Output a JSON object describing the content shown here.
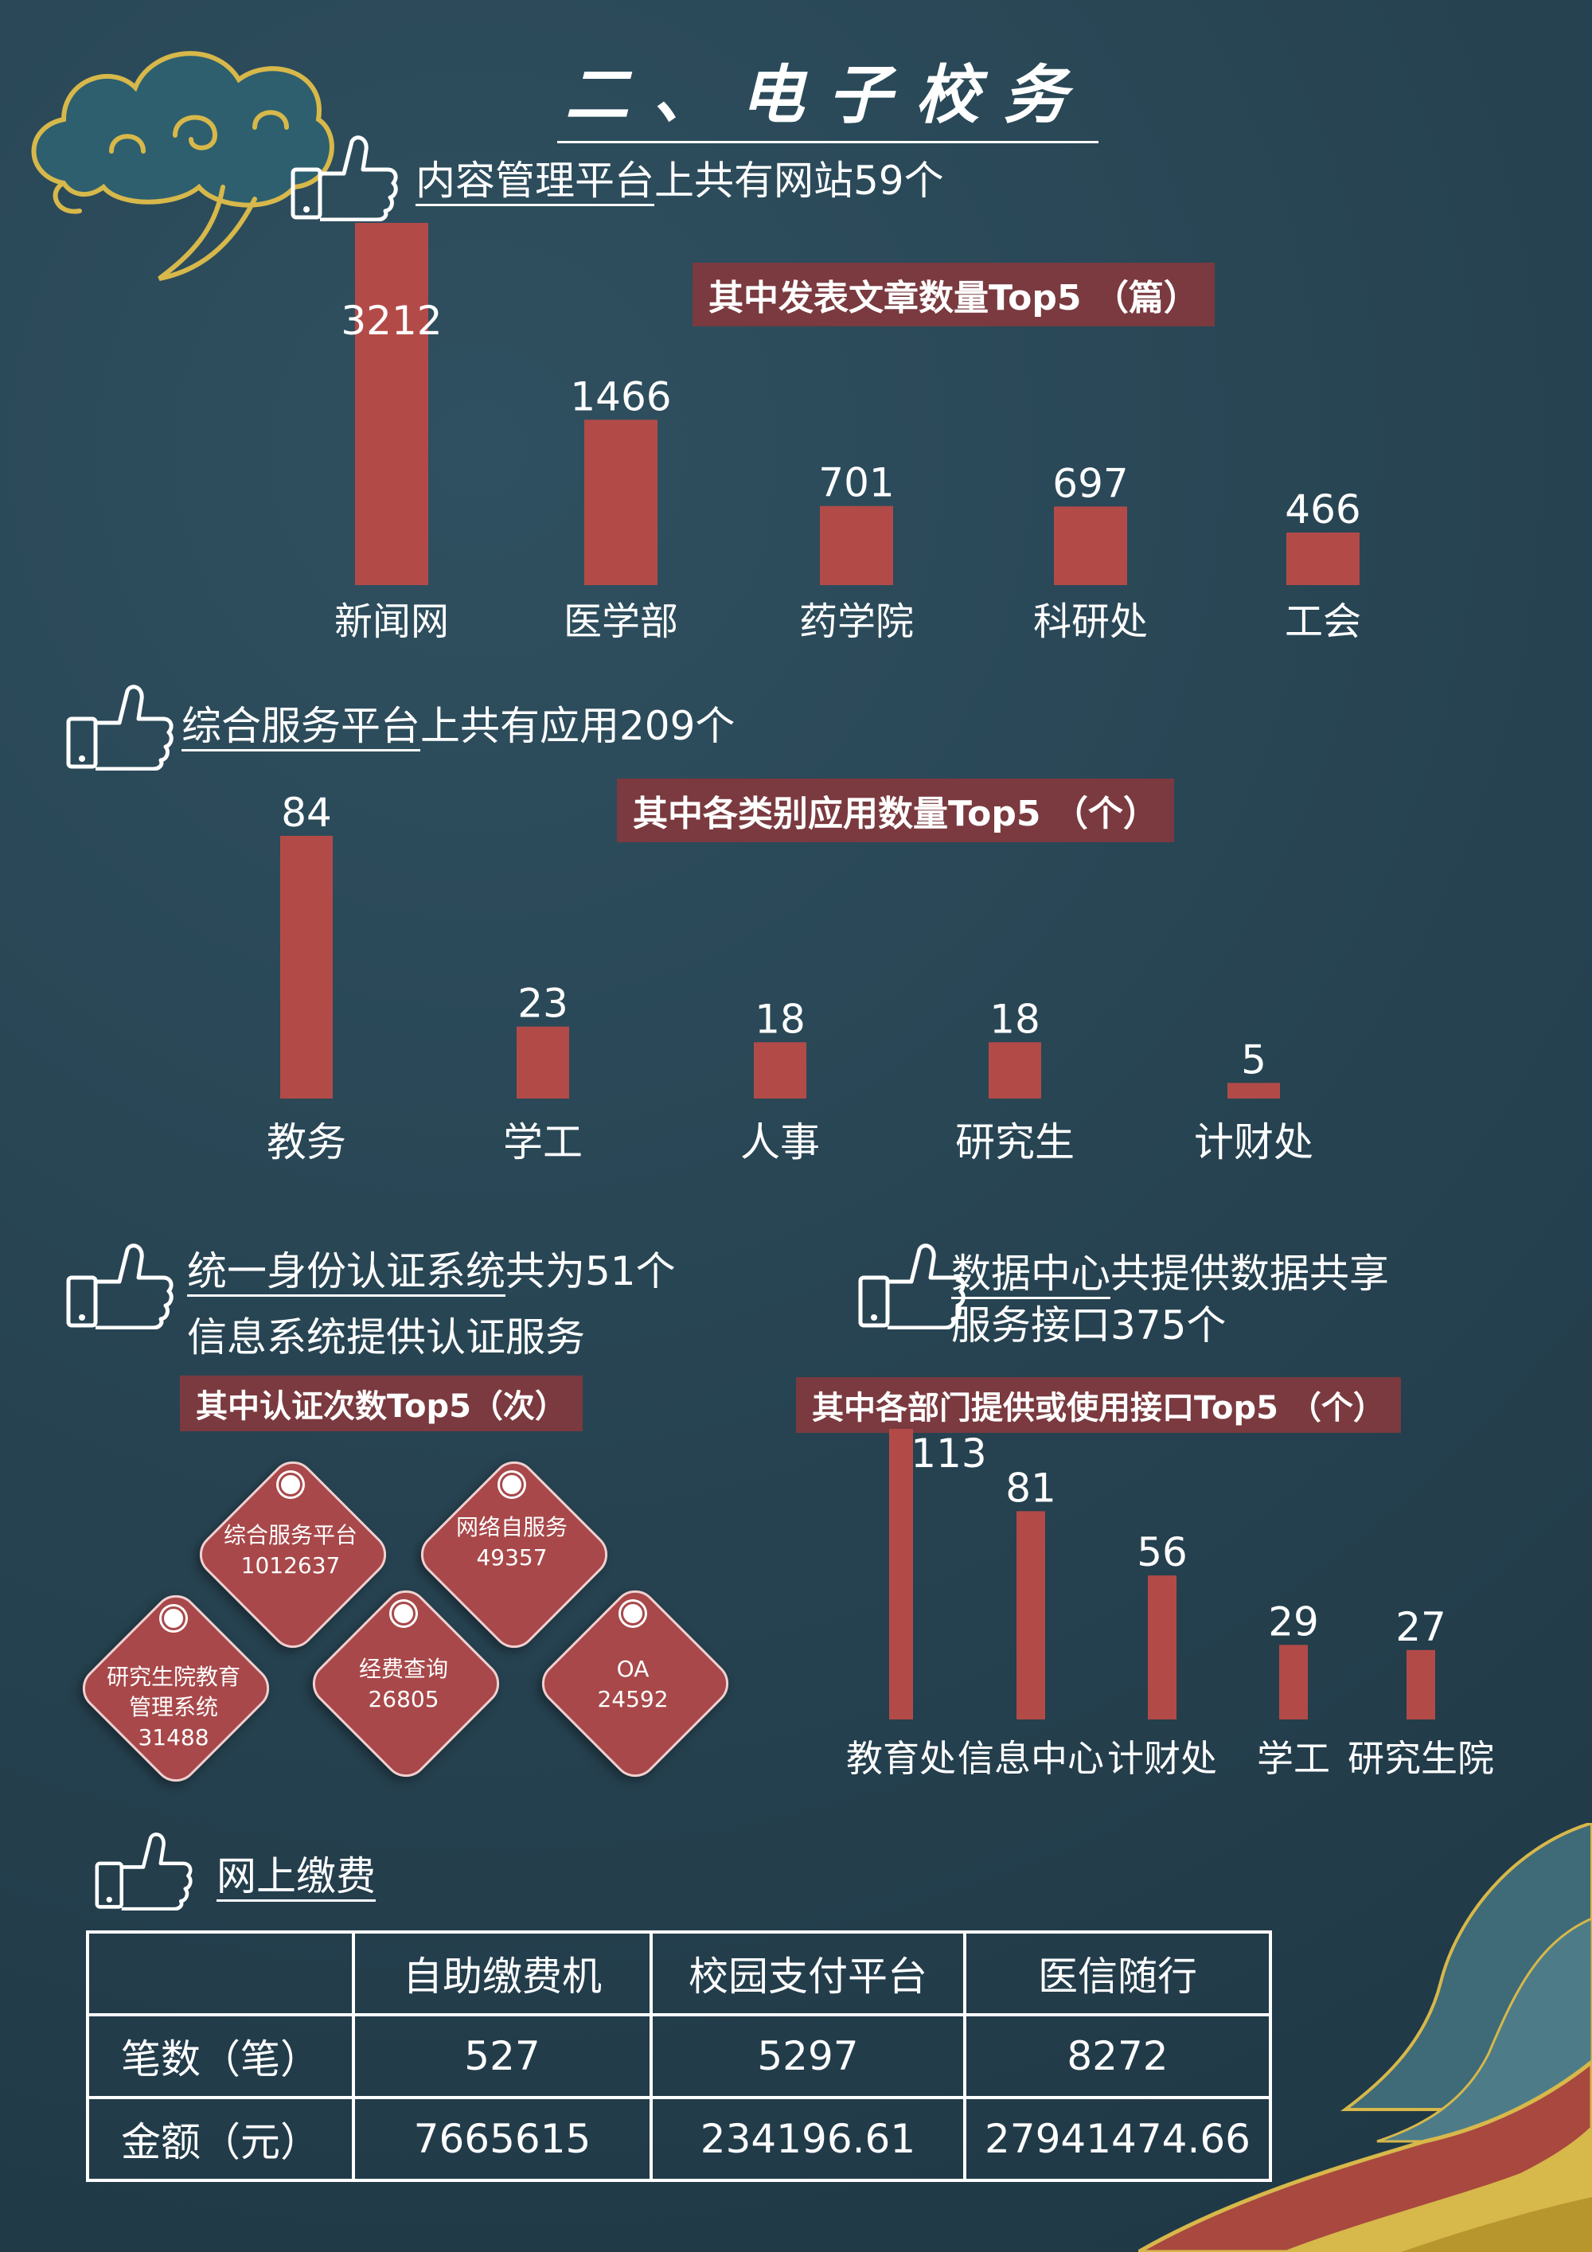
{
  "title": "二、电子校务",
  "colors": {
    "bar": "#b24b48",
    "banner": "#7a3a3f",
    "background": "#2a4655",
    "accent_gold": "#d7b84a"
  },
  "sections": {
    "cms": {
      "heading_underlined": "内容管理平台",
      "heading_rest": "上共有网站59个",
      "banner": "其中发表文章数量Top5 （篇）"
    },
    "service": {
      "heading_underlined": "综合服务平台",
      "heading_rest": "上共有应用209个",
      "banner": "其中各类别应用数量Top5 （个）"
    },
    "auth": {
      "heading_line1_underlined": "统一身份认证系统",
      "heading_line1_rest": "共为51个",
      "heading_line2": "信息系统提供认证服务",
      "banner": "其中认证次数Top5（次）"
    },
    "data": {
      "heading_line1_underlined": "数据中心",
      "heading_line1_rest": "共提供数据共享",
      "heading_line2": "服务接口375个",
      "banner": "其中各部门提供或使用接口Top5 （个）"
    },
    "payment": {
      "heading": "网上缴费"
    }
  },
  "chart_data": [
    {
      "type": "bar",
      "title": "其中发表文章数量Top5 （篇）",
      "categories": [
        "新闻网",
        "医学部",
        "药学院",
        "科研处",
        "工会"
      ],
      "values": [
        3212,
        1466,
        701,
        697,
        466
      ]
    },
    {
      "type": "bar",
      "title": "其中各类别应用数量Top5 （个）",
      "categories": [
        "教务",
        "学工",
        "人事",
        "研究生",
        "计财处"
      ],
      "values": [
        84,
        23,
        18,
        18,
        5
      ]
    },
    {
      "type": "bar",
      "title": "其中各部门提供或使用接口Top5 （个）",
      "categories": [
        "教育处",
        "信息中心",
        "计财处",
        "学工",
        "研究生院"
      ],
      "values": [
        113,
        81,
        56,
        29,
        27
      ]
    },
    {
      "type": "table",
      "title": "其中认证次数Top5（次）",
      "items": [
        {
          "name": "综合服务平台",
          "value": "1012637"
        },
        {
          "name": "网络自服务",
          "value": "49357"
        },
        {
          "name": "研究生院教育管理系统",
          "line1": "研究生院教育",
          "line2": "管理系统",
          "value": "31488"
        },
        {
          "name": "经费查询",
          "value": "26805"
        },
        {
          "name": "OA",
          "value": "24592"
        }
      ]
    },
    {
      "type": "table",
      "title": "网上缴费",
      "columns": [
        "",
        "自助缴费机",
        "校园支付平台",
        "医信随行"
      ],
      "rows": [
        {
          "label": "笔数（笔）",
          "values": [
            "527",
            "5297",
            "8272"
          ]
        },
        {
          "label": "金额（元）",
          "values": [
            "7665615",
            "234196.61",
            "27941474.66"
          ]
        }
      ]
    }
  ]
}
